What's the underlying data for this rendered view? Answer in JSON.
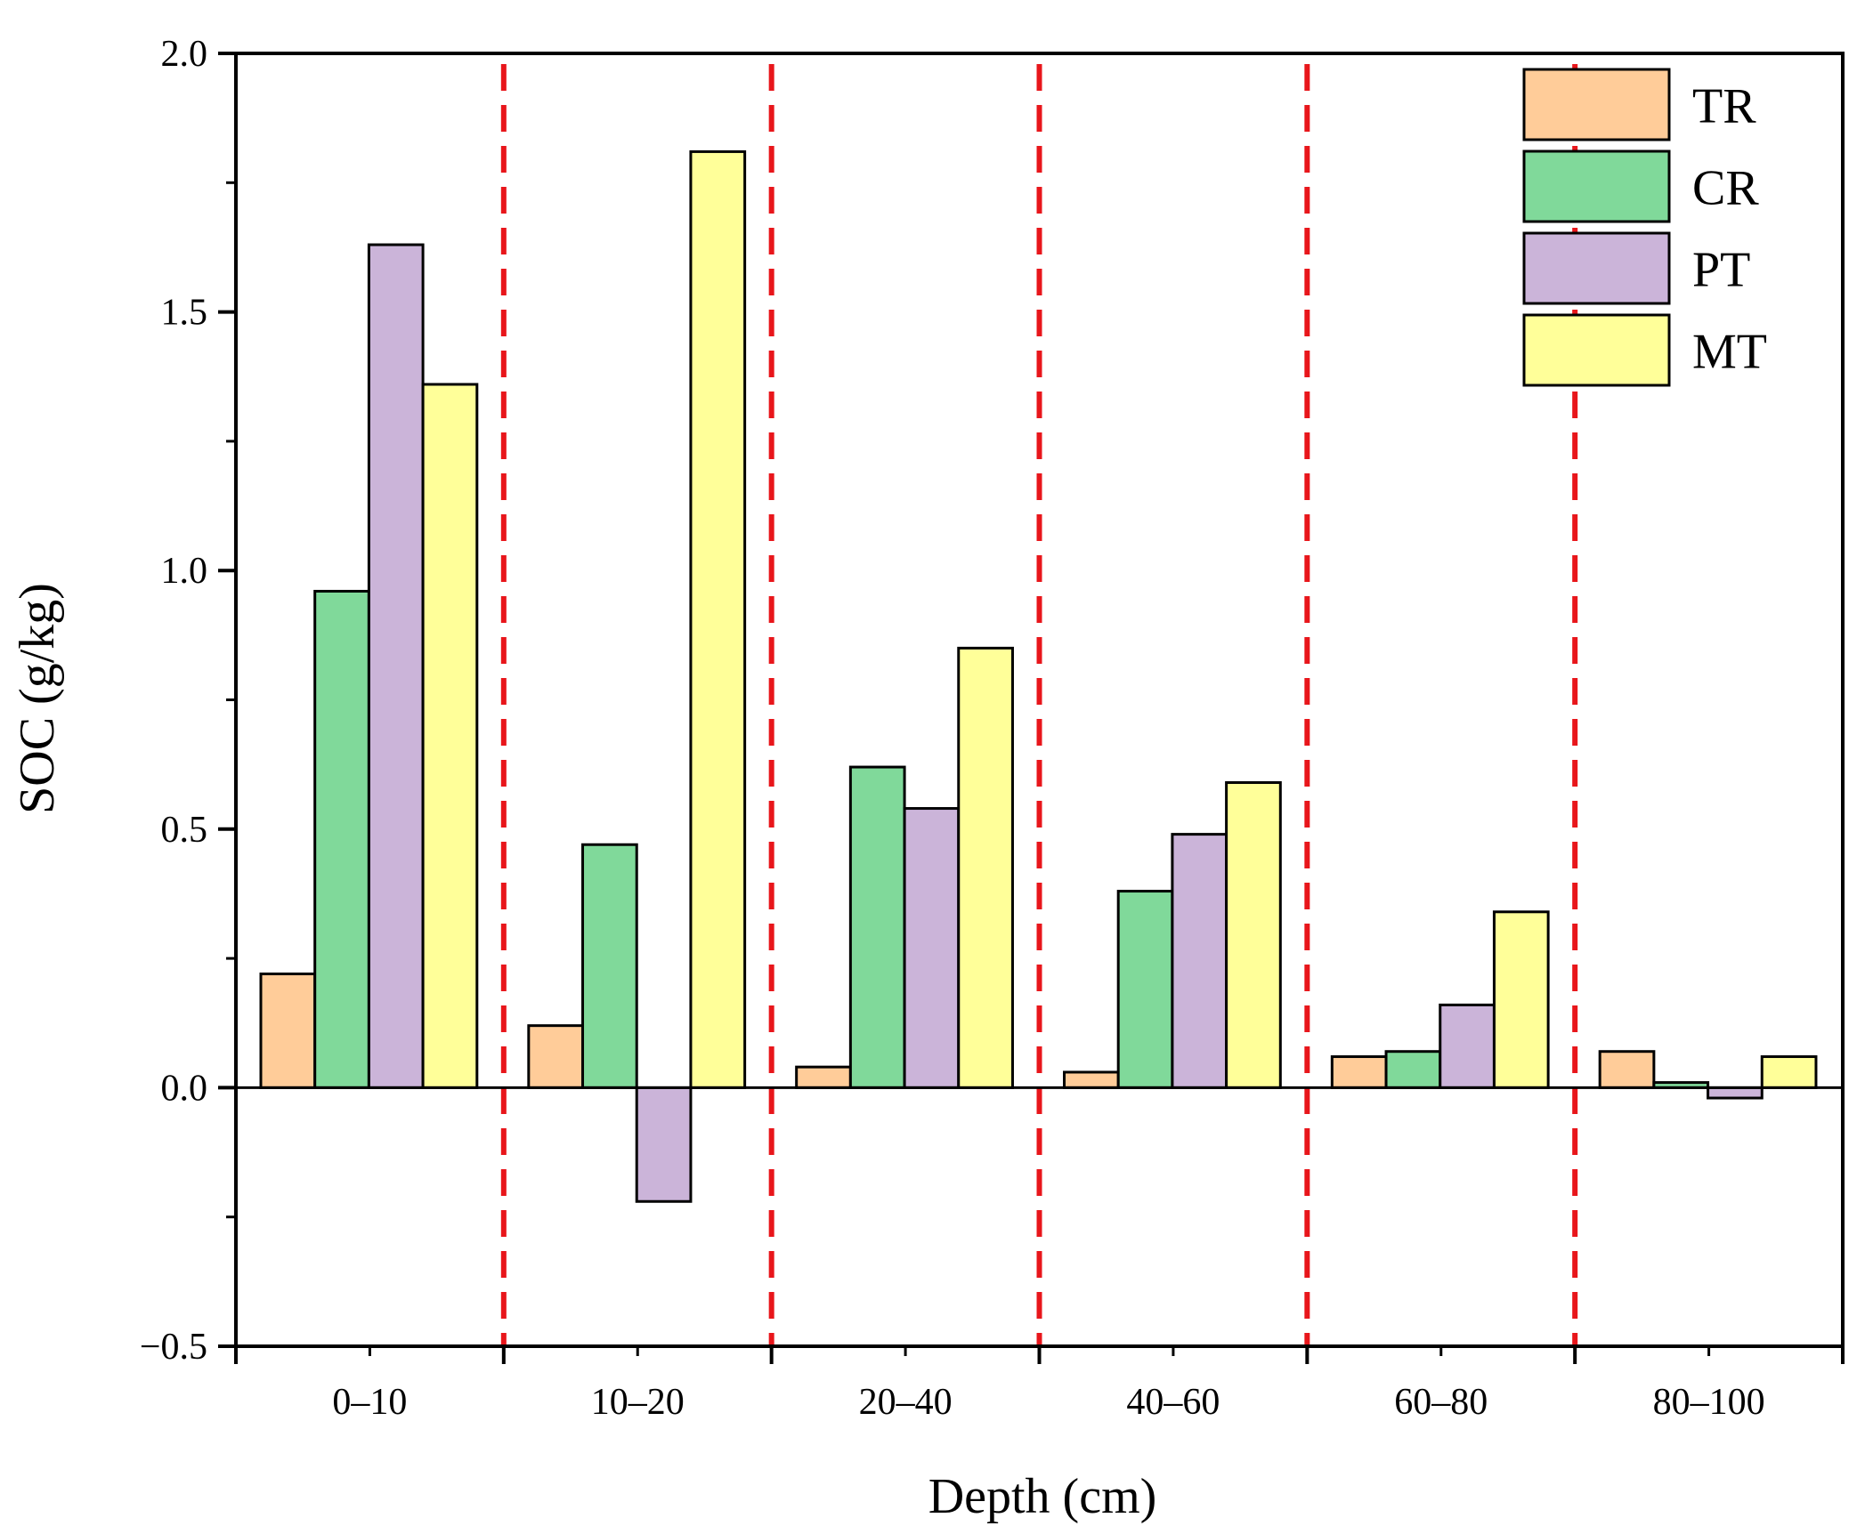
{
  "chart_data": {
    "type": "bar",
    "title": "",
    "xlabel": "Depth (cm)",
    "ylabel": "SOC (g/kg)",
    "categories": [
      "0–10",
      "10–20",
      "20–40",
      "40–60",
      "60–80",
      "80–100"
    ],
    "ylim": [
      -0.5,
      2.0
    ],
    "yticks": [
      -0.5,
      0.0,
      0.5,
      1.0,
      1.5,
      2.0
    ],
    "ytick_labels": [
      "−0.5",
      "0.0",
      "0.5",
      "1.0",
      "1.5",
      "2.0"
    ],
    "series": [
      {
        "name": "TR",
        "color": "#FFCC99",
        "values": [
          0.22,
          0.12,
          0.04,
          0.03,
          0.06,
          0.07
        ]
      },
      {
        "name": "CR",
        "color": "#80D99A",
        "values": [
          0.96,
          0.47,
          0.62,
          0.38,
          0.07,
          0.01
        ]
      },
      {
        "name": "PT",
        "color": "#CBB4D9",
        "values": [
          1.63,
          -0.22,
          0.54,
          0.49,
          0.16,
          -0.02
        ]
      },
      {
        "name": "MT",
        "color": "#FFFF99",
        "values": [
          1.36,
          1.81,
          0.85,
          0.59,
          0.34,
          0.06
        ]
      }
    ],
    "separator_color": "#E8161B",
    "grid": false,
    "legend_position": "top-right"
  }
}
